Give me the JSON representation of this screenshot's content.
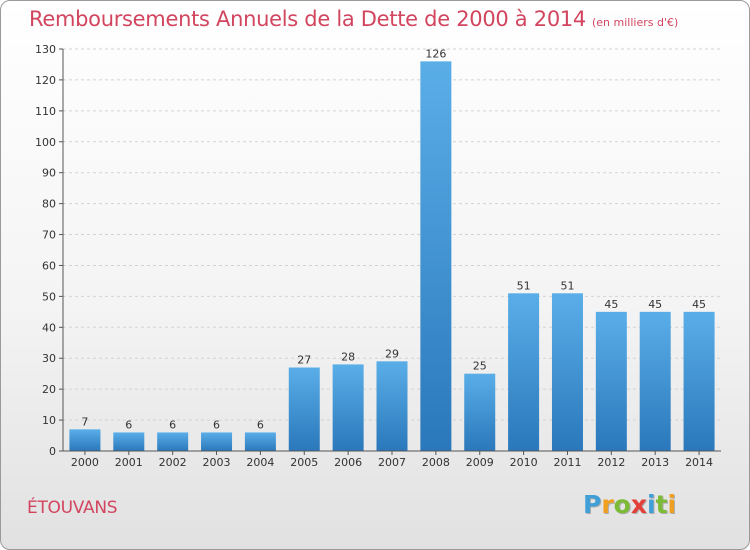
{
  "header": {
    "title": "Remboursements Annuels de la Dette de 2000 à 2014",
    "subtitle": "(en milliers d'€)"
  },
  "location": "ÉTOUVANS",
  "logo": {
    "letters": [
      "P",
      "r",
      "o",
      "x",
      "i",
      "t",
      "i"
    ],
    "colors": [
      "#3f9fd6",
      "#f0a020",
      "#7cbb35",
      "#e3403a",
      "#3f9fd6",
      "#7cbb35",
      "#f0a020"
    ]
  },
  "chart_data": {
    "type": "bar",
    "title": "Remboursements Annuels de la Dette de 2000 à 2014",
    "subtitle": "(en milliers d'€)",
    "categories": [
      "2000",
      "2001",
      "2002",
      "2003",
      "2004",
      "2005",
      "2006",
      "2007",
      "2008",
      "2009",
      "2010",
      "2011",
      "2012",
      "2013",
      "2014"
    ],
    "values": [
      7,
      6,
      6,
      6,
      6,
      27,
      28,
      29,
      126,
      25,
      51,
      51,
      45,
      45,
      45
    ],
    "data_labels": [
      "7",
      "6",
      "6",
      "6",
      "6",
      "27",
      "28",
      "29",
      "126",
      "25",
      "51",
      "51",
      "45",
      "45",
      "45"
    ],
    "yticks": [
      0,
      10,
      20,
      30,
      40,
      50,
      60,
      70,
      80,
      90,
      100,
      110,
      120,
      130
    ],
    "ylim": [
      0,
      130
    ],
    "grid": true,
    "bar_color": "#3d93d6",
    "label_color": "#333333"
  }
}
